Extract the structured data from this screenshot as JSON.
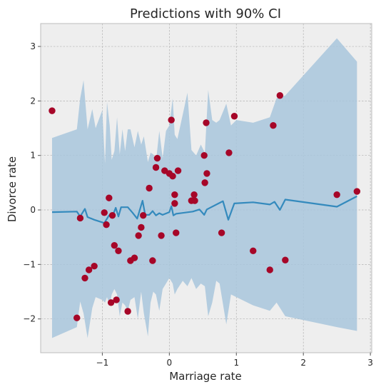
{
  "chart_data": {
    "type": "scatter",
    "title": "Predictions with 90% CI",
    "xlabel": "Marriage rate",
    "ylabel": "Divorce rate",
    "xlim": [
      -1.92,
      3.02
    ],
    "ylim": [
      -2.62,
      3.42
    ],
    "xticks": [
      -1,
      0,
      1,
      2,
      3
    ],
    "yticks": [
      -2,
      -1,
      0,
      1,
      2,
      3
    ],
    "grid": true,
    "colors": {
      "background": "#eeeeee",
      "grid": "#b2b2b2",
      "points": "#a60628",
      "line": "#348abd",
      "band": "#a8c6dc"
    },
    "series": [
      {
        "kind": "points",
        "points": [
          [
            -1.75,
            1.82
          ],
          [
            -1.38,
            -1.98
          ],
          [
            -1.33,
            -0.15
          ],
          [
            -1.26,
            -1.25
          ],
          [
            -1.2,
            -1.1
          ],
          [
            -1.12,
            -1.03
          ],
          [
            -0.97,
            -0.05
          ],
          [
            -0.94,
            -0.27
          ],
          [
            -0.9,
            0.22
          ],
          [
            -0.87,
            -1.7
          ],
          [
            -0.85,
            -0.1
          ],
          [
            -0.82,
            -0.65
          ],
          [
            -0.79,
            -1.65
          ],
          [
            -0.76,
            -0.75
          ],
          [
            -0.62,
            -1.86
          ],
          [
            -0.58,
            -0.93
          ],
          [
            -0.52,
            -0.88
          ],
          [
            -0.46,
            -0.47
          ],
          [
            -0.42,
            -0.32
          ],
          [
            -0.39,
            -0.1
          ],
          [
            -0.3,
            0.4
          ],
          [
            -0.25,
            -0.93
          ],
          [
            -0.2,
            0.78
          ],
          [
            -0.18,
            0.95
          ],
          [
            -0.12,
            -0.47
          ],
          [
            -0.07,
            0.72
          ],
          [
            0.0,
            0.67
          ],
          [
            0.03,
            1.65
          ],
          [
            0.05,
            0.62
          ],
          [
            0.08,
            0.28
          ],
          [
            0.08,
            0.12
          ],
          [
            0.1,
            -0.42
          ],
          [
            0.13,
            0.72
          ],
          [
            0.33,
            0.17
          ],
          [
            0.37,
            0.28
          ],
          [
            0.38,
            0.17
          ],
          [
            0.52,
            1.0
          ],
          [
            0.53,
            0.5
          ],
          [
            0.55,
            1.6
          ],
          [
            0.56,
            0.67
          ],
          [
            0.78,
            -0.42
          ],
          [
            0.89,
            1.05
          ],
          [
            0.97,
            1.72
          ],
          [
            1.25,
            -0.75
          ],
          [
            1.5,
            -1.1
          ],
          [
            1.55,
            1.55
          ],
          [
            1.65,
            2.1
          ],
          [
            1.73,
            -0.92
          ],
          [
            2.5,
            0.28
          ],
          [
            2.8,
            0.34
          ]
        ]
      },
      {
        "kind": "line",
        "points": [
          [
            -1.75,
            -0.04
          ],
          [
            -1.38,
            -0.03
          ],
          [
            -1.33,
            -0.12
          ],
          [
            -1.26,
            0.02
          ],
          [
            -1.22,
            -0.13
          ],
          [
            -1.12,
            -0.18
          ],
          [
            -0.97,
            -0.24
          ],
          [
            -0.9,
            -0.1
          ],
          [
            -0.85,
            -0.12
          ],
          [
            -0.8,
            0.04
          ],
          [
            -0.76,
            -0.12
          ],
          [
            -0.72,
            0.05
          ],
          [
            -0.62,
            0.05
          ],
          [
            -0.55,
            -0.05
          ],
          [
            -0.48,
            -0.16
          ],
          [
            -0.4,
            0.17
          ],
          [
            -0.36,
            -0.09
          ],
          [
            -0.3,
            -0.09
          ],
          [
            -0.25,
            -0.02
          ],
          [
            -0.2,
            -0.1
          ],
          [
            -0.15,
            -0.06
          ],
          [
            -0.1,
            -0.09
          ],
          [
            0.0,
            -0.04
          ],
          [
            0.03,
            0.07
          ],
          [
            0.06,
            -0.1
          ],
          [
            0.1,
            -0.07
          ],
          [
            0.35,
            -0.03
          ],
          [
            0.45,
            0.01
          ],
          [
            0.52,
            -0.09
          ],
          [
            0.56,
            0.01
          ],
          [
            0.75,
            0.13
          ],
          [
            0.8,
            0.16
          ],
          [
            0.88,
            -0.18
          ],
          [
            0.97,
            0.12
          ],
          [
            1.25,
            0.14
          ],
          [
            1.5,
            0.1
          ],
          [
            1.57,
            0.15
          ],
          [
            1.65,
            0.0
          ],
          [
            1.73,
            0.19
          ],
          [
            2.5,
            0.06
          ],
          [
            2.8,
            0.25
          ]
        ]
      },
      {
        "kind": "band-90ci",
        "upper": [
          [
            -1.75,
            1.32
          ],
          [
            -1.38,
            1.48
          ],
          [
            -1.33,
            2.05
          ],
          [
            -1.28,
            2.38
          ],
          [
            -1.22,
            1.48
          ],
          [
            -1.15,
            1.85
          ],
          [
            -1.1,
            1.5
          ],
          [
            -1.0,
            1.83
          ],
          [
            -0.96,
            0.85
          ],
          [
            -0.93,
            1.98
          ],
          [
            -0.89,
            1.55
          ],
          [
            -0.86,
            0.92
          ],
          [
            -0.82,
            1.08
          ],
          [
            -0.78,
            1.7
          ],
          [
            -0.74,
            1.02
          ],
          [
            -0.7,
            1.48
          ],
          [
            -0.66,
            1.08
          ],
          [
            -0.62,
            1.48
          ],
          [
            -0.58,
            1.48
          ],
          [
            -0.52,
            1.15
          ],
          [
            -0.47,
            1.45
          ],
          [
            -0.42,
            1.2
          ],
          [
            -0.38,
            1.35
          ],
          [
            -0.32,
            0.88
          ],
          [
            -0.28,
            1.05
          ],
          [
            -0.24,
            1.02
          ],
          [
            -0.2,
            0.88
          ],
          [
            -0.15,
            1.45
          ],
          [
            -0.1,
            0.95
          ],
          [
            -0.05,
            1.45
          ],
          [
            0.0,
            1.55
          ],
          [
            0.05,
            2.05
          ],
          [
            0.08,
            1.38
          ],
          [
            0.12,
            1.3
          ],
          [
            0.2,
            1.75
          ],
          [
            0.27,
            2.15
          ],
          [
            0.33,
            1.1
          ],
          [
            0.4,
            1.0
          ],
          [
            0.47,
            1.2
          ],
          [
            0.53,
            1.05
          ],
          [
            0.58,
            2.2
          ],
          [
            0.64,
            1.65
          ],
          [
            0.7,
            1.6
          ],
          [
            0.75,
            1.65
          ],
          [
            0.85,
            1.95
          ],
          [
            0.92,
            1.55
          ],
          [
            1.0,
            1.65
          ],
          [
            1.25,
            1.6
          ],
          [
            1.5,
            1.7
          ],
          [
            1.6,
            2.05
          ],
          [
            1.73,
            2.1
          ],
          [
            2.5,
            3.15
          ],
          [
            2.8,
            2.72
          ]
        ],
        "lower": [
          [
            -1.75,
            -2.35
          ],
          [
            -1.38,
            -2.15
          ],
          [
            -1.33,
            -1.68
          ],
          [
            -1.28,
            -1.9
          ],
          [
            -1.22,
            -2.35
          ],
          [
            -1.15,
            -1.8
          ],
          [
            -1.1,
            -1.6
          ],
          [
            -1.0,
            -1.65
          ],
          [
            -0.96,
            -1.7
          ],
          [
            -0.93,
            -1.6
          ],
          [
            -0.89,
            -1.75
          ],
          [
            -0.86,
            -1.55
          ],
          [
            -0.82,
            -1.45
          ],
          [
            -0.78,
            -1.55
          ],
          [
            -0.74,
            -1.95
          ],
          [
            -0.7,
            -1.7
          ],
          [
            -0.66,
            -1.75
          ],
          [
            -0.62,
            -1.85
          ],
          [
            -0.58,
            -1.65
          ],
          [
            -0.52,
            -1.6
          ],
          [
            -0.47,
            -2.0
          ],
          [
            -0.42,
            -1.5
          ],
          [
            -0.38,
            -1.9
          ],
          [
            -0.32,
            -2.32
          ],
          [
            -0.28,
            -1.7
          ],
          [
            -0.24,
            -1.5
          ],
          [
            -0.2,
            -1.55
          ],
          [
            -0.15,
            -1.85
          ],
          [
            -0.1,
            -1.45
          ],
          [
            -0.05,
            -1.35
          ],
          [
            0.0,
            -1.25
          ],
          [
            0.05,
            -1.35
          ],
          [
            0.08,
            -1.55
          ],
          [
            0.12,
            -1.45
          ],
          [
            0.2,
            -1.3
          ],
          [
            0.27,
            -1.4
          ],
          [
            0.33,
            -1.25
          ],
          [
            0.4,
            -1.45
          ],
          [
            0.47,
            -1.35
          ],
          [
            0.53,
            -1.4
          ],
          [
            0.58,
            -1.95
          ],
          [
            0.64,
            -1.7
          ],
          [
            0.7,
            -1.3
          ],
          [
            0.75,
            -1.35
          ],
          [
            0.85,
            -2.1
          ],
          [
            0.92,
            -1.55
          ],
          [
            1.0,
            -1.6
          ],
          [
            1.25,
            -1.75
          ],
          [
            1.5,
            -1.85
          ],
          [
            1.6,
            -1.7
          ],
          [
            1.73,
            -1.95
          ],
          [
            2.5,
            -2.15
          ],
          [
            2.8,
            -2.22
          ]
        ]
      }
    ]
  }
}
